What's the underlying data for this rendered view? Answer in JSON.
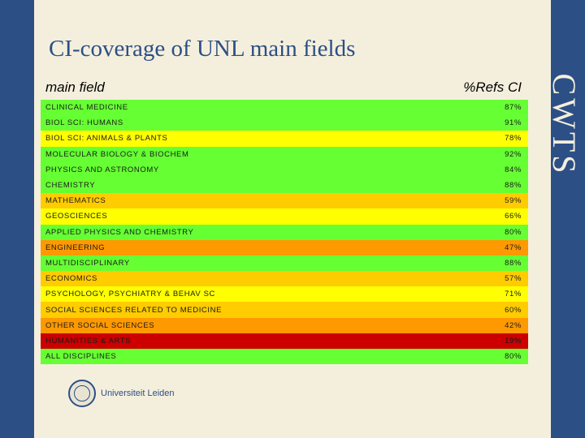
{
  "slide": {
    "title": "CI-coverage of UNL main fields",
    "header_field": "main field",
    "header_refs": "%Refs CI",
    "brand": "CWTS",
    "logo_text": "Universiteit Leiden"
  },
  "rows": [
    {
      "field": "CLINICAL MEDICINE",
      "value": "87%",
      "color": "#66ff33"
    },
    {
      "field": "BIOL SCI: HUMANS",
      "value": "91%",
      "color": "#66ff33"
    },
    {
      "field": "BIOL SCI: ANIMALS & PLANTS",
      "value": "78%",
      "color": "#ffff00"
    },
    {
      "field": "MOLECULAR BIOLOGY & BIOCHEM",
      "value": "92%",
      "color": "#66ff33"
    },
    {
      "field": "PHYSICS AND ASTRONOMY",
      "value": "84%",
      "color": "#66ff33"
    },
    {
      "field": "CHEMISTRY",
      "value": "88%",
      "color": "#66ff33"
    },
    {
      "field": "MATHEMATICS",
      "value": "59%",
      "color": "#ffcc00"
    },
    {
      "field": "GEOSCIENCES",
      "value": "66%",
      "color": "#ffff00"
    },
    {
      "field": "APPLIED PHYSICS AND CHEMISTRY",
      "value": "80%",
      "color": "#66ff33"
    },
    {
      "field": "ENGINEERING",
      "value": "47%",
      "color": "#ff9900"
    },
    {
      "field": "MULTIDISCIPLINARY",
      "value": "88%",
      "color": "#66ff33"
    },
    {
      "field": "ECONOMICS",
      "value": "57%",
      "color": "#ffcc00"
    },
    {
      "field": "PSYCHOLOGY, PSYCHIATRY & BEHAV SC",
      "value": "71%",
      "color": "#ffff00"
    },
    {
      "field": "SOCIAL SCIENCES RELATED TO MEDICINE",
      "value": "60%",
      "color": "#ffcc00"
    },
    {
      "field": "OTHER SOCIAL SCIENCES",
      "value": "42%",
      "color": "#ff9900"
    },
    {
      "field": "HUMANITIES & ARTS",
      "value": "19%",
      "color": "#cc0000"
    },
    {
      "field": "ALL DISCIPLINES",
      "value": "80%",
      "color": "#66ff33"
    }
  ]
}
